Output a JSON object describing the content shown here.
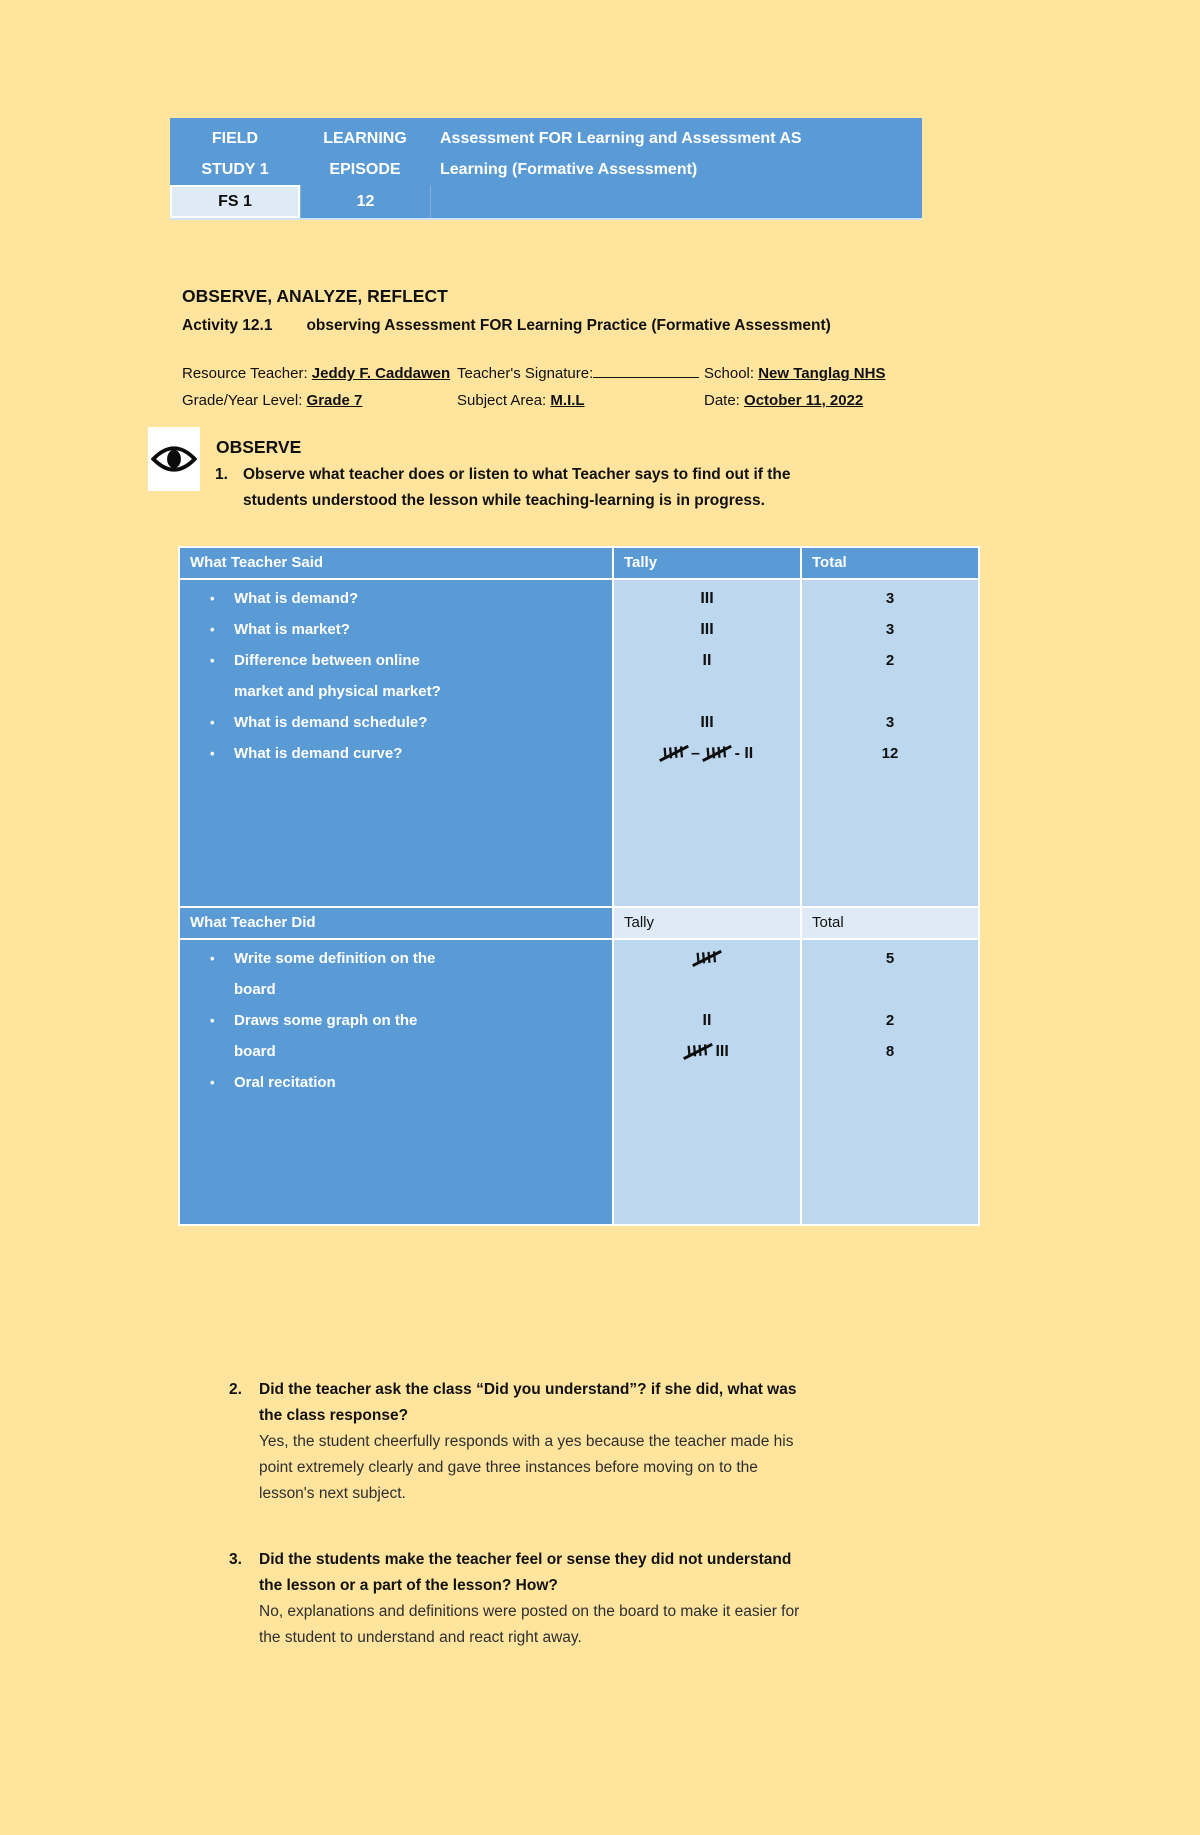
{
  "header_table": {
    "col1_line1": "FIELD",
    "col1_line2": "STUDY 1",
    "col2_line1": "LEARNING",
    "col2_line2": "EPISODE",
    "title_line1": "Assessment FOR Learning and Assessment AS",
    "title_line2": "Learning (Formative Assessment)",
    "code": "FS 1",
    "episode_number": "12",
    "colors": {
      "blue": "#5B9BD5",
      "light_cell": "#DEEBF7",
      "body_cell": "#BDD7EE",
      "page_bg": "#FFE49E"
    }
  },
  "section": {
    "heading": "OBSERVE, ANALYZE, REFLECT",
    "activity_label": "Activity 12.1",
    "activity_title": "observing Assessment FOR Learning Practice (Formative Assessment)"
  },
  "info": {
    "resource_teacher_label": "Resource Teacher:",
    "resource_teacher": "Jeddy F. Caddawen",
    "signature_label": "Teacher's Signature:",
    "school_label": "School:",
    "school": "New Tanglag NHS",
    "grade_label": "Grade/Year Level:",
    "grade": "Grade 7",
    "subject_label": "Subject Area:",
    "subject": "M.I.L",
    "date_label": "Date:",
    "date": "October 11, 2022"
  },
  "observe": {
    "title": "OBSERVE",
    "q1_number": "1.",
    "q1_lines": [
      "Observe what teacher does or listen to what Teacher says to find out if the",
      "students understood the lesson while teaching-learning is in progress."
    ]
  },
  "table": {
    "tally_token_strike5": "X",
    "headers1": {
      "c1": "What Teacher Said",
      "c2": "Tally",
      "c3": "Total"
    },
    "said_lines": [
      {
        "b": true,
        "t": "What is demand?"
      },
      {
        "b": true,
        "t": "What is market?"
      },
      {
        "b": true,
        "t": "Difference between online"
      },
      {
        "b": false,
        "t": "market and physical market?"
      },
      {
        "b": true,
        "t": "What is demand schedule?"
      },
      {
        "b": true,
        "t": "What is demand curve?"
      }
    ],
    "tally1": [
      "III",
      "III",
      "II",
      "",
      "III",
      "X – X - II"
    ],
    "total1": [
      "3",
      "3",
      "2",
      "",
      "3",
      "12"
    ],
    "headers2": {
      "c1": "What Teacher Did",
      "c2": "Tally",
      "c3": "Total"
    },
    "did_lines": [
      {
        "b": true,
        "t": "Write some definition on the"
      },
      {
        "b": false,
        "t": "board"
      },
      {
        "b": true,
        "t": "Draws some graph on the"
      },
      {
        "b": false,
        "t": "board"
      },
      {
        "b": true,
        "t": "Oral recitation"
      }
    ],
    "tally2": [
      "X",
      "",
      "II",
      "X III",
      ""
    ],
    "total2": [
      "5",
      "",
      "2",
      "8",
      ""
    ]
  },
  "questions": [
    {
      "number": "2.",
      "q_lines": [
        "Did the teacher ask the class “Did you understand”? if she did, what was",
        "the class response?"
      ],
      "a_lines": [
        "Yes, the student cheerfully responds with a yes because the teacher made his",
        "point extremely clearly and gave three instances before moving on to the",
        "lesson's next subject."
      ]
    },
    {
      "number": "3.",
      "q_lines": [
        "Did the students make the teacher feel or sense they did not understand",
        "the lesson or a part of the lesson? How?"
      ],
      "a_lines": [
        "No, explanations and definitions were posted on the board to make it easier for",
        "the student to understand and react right away."
      ]
    }
  ]
}
